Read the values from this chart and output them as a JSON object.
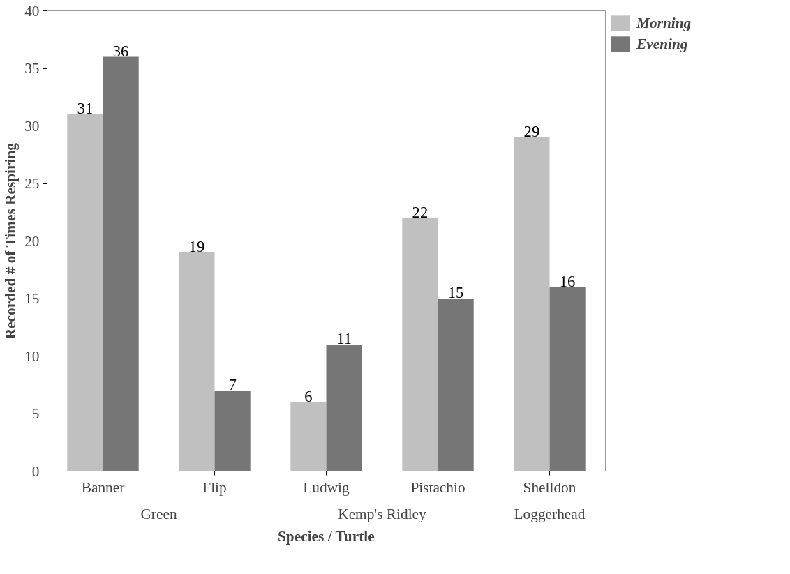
{
  "chart_data": {
    "type": "bar",
    "xlabel": "Species / Turtle",
    "ylabel": "Recorded # of Times Respiring",
    "categories": [
      "Banner",
      "Flip",
      "Ludwig",
      "Pistachio",
      "Shelldon"
    ],
    "series": [
      {
        "name": "Morning",
        "color": "#c0c0c0",
        "values": [
          31,
          19,
          6,
          22,
          29
        ]
      },
      {
        "name": "Evening",
        "color": "#767676",
        "values": [
          36,
          7,
          11,
          15,
          16
        ]
      }
    ],
    "annotations": [
      "Green",
      "Kemp's Ridley",
      "Loggerhead"
    ],
    "ylim": [
      0,
      40
    ],
    "yticks": [
      0,
      5,
      10,
      15,
      20,
      25,
      30,
      35,
      40
    ],
    "data_labels": true,
    "grid": false,
    "legend": "top right"
  }
}
